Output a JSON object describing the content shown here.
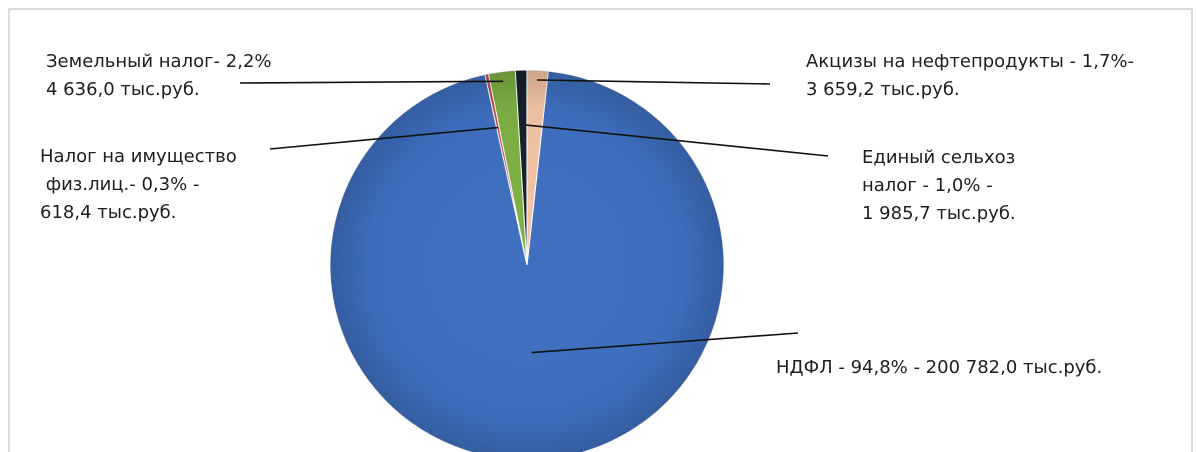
{
  "chart_data": {
    "type": "pie",
    "title": "",
    "colors": {
      "НДФЛ": "#3f6fbf",
      "Акцизы на нефтепродукты": "#f2c4a4",
      "Единый сельхоз налог": "#17212c",
      "Земельный налог": "#7eb043",
      "Налог на имущество физ.лиц.": "#c0504d"
    },
    "slices": [
      {
        "name": "НДФЛ",
        "percent": 94.8,
        "value": 200782.0,
        "label_lines": [
          "НДФЛ - 94,8% - 200 782,0 тыс.руб."
        ]
      },
      {
        "name": "Налог на имущество физ.лиц.",
        "percent": 0.3,
        "value": 618.4,
        "label_lines": [
          "Налог на имущество",
          " физ.лиц.- 0,3% -",
          "618,4 тыс.руб."
        ]
      },
      {
        "name": "Земельный налог",
        "percent": 2.2,
        "value": 4636.0,
        "label_lines": [
          "Земельный налог- 2,2%",
          "4 636,0 тыс.руб."
        ]
      },
      {
        "name": "Единый сельхоз налог",
        "percent": 1.0,
        "value": 1985.7,
        "label_lines": [
          "Единый сельхоз",
          "налог - 1,0% -",
          "1 985,7 тыс.руб."
        ]
      },
      {
        "name": "Акцизы на нефтепродукты",
        "percent": 1.7,
        "value": 3659.2,
        "label_lines": [
          "Акцизы на нефтепродукты - 1,7%-",
          "3 659,2 тыс.руб."
        ]
      }
    ]
  }
}
